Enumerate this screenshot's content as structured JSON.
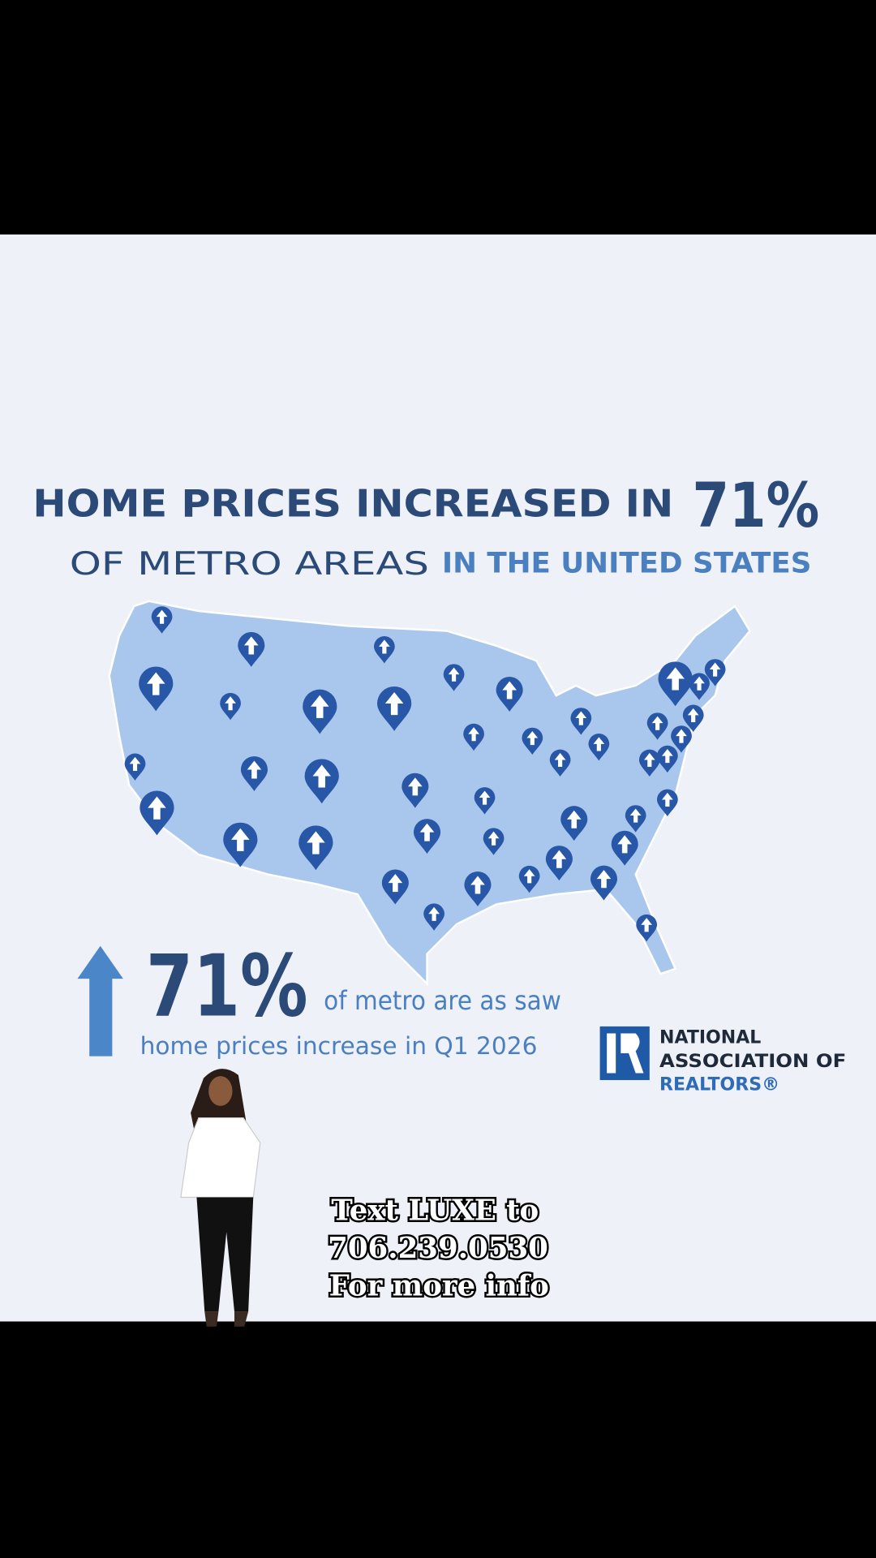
{
  "headline": {
    "text": "HOME PRICES INCREASED IN",
    "highlight": "71%"
  },
  "subheadline": {
    "part1": "OF METRO AREAS",
    "part2": "IN THE UNITED STATES"
  },
  "stat": {
    "value": "71%",
    "line1": "of metro are as saw",
    "line2": "home prices increase in Q1 2026"
  },
  "logo": {
    "line1": "NATIONAL",
    "line2": "ASSOCIATION OF",
    "line3": "REALTORS®"
  },
  "caption": {
    "line1": "Text LUXE to",
    "line2": "706.239.0530",
    "line3": "For more info"
  }
}
